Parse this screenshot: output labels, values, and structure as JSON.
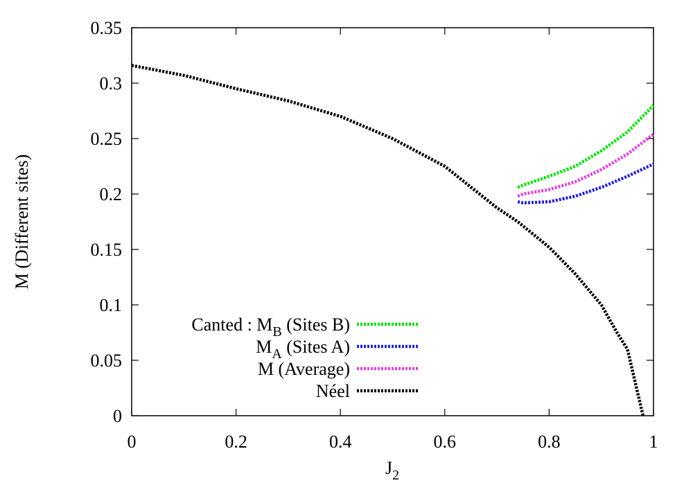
{
  "chart_data": {
    "type": "line",
    "xlabel": "J_2",
    "ylabel": "M (Different sites)",
    "xlim": [
      0,
      1
    ],
    "xticks": [
      0,
      0.2,
      0.4,
      0.6,
      0.8,
      1
    ],
    "ylim": [
      0,
      0.35
    ],
    "yticks": [
      0,
      0.05,
      0.1,
      0.15,
      0.2,
      0.25,
      0.3,
      0.35
    ],
    "legend": "lower left",
    "series": [
      {
        "name": "Canted : M_B (Sites B)",
        "color": "#00e000",
        "x": [
          0.74,
          0.75,
          0.8,
          0.85,
          0.9,
          0.95,
          1.0
        ],
        "values": [
          0.206,
          0.208,
          0.216,
          0.225,
          0.239,
          0.256,
          0.28
        ]
      },
      {
        "name": "M_A (Sites A)",
        "color": "#1f1fd6",
        "x": [
          0.74,
          0.75,
          0.8,
          0.85,
          0.9,
          0.95,
          1.0
        ],
        "values": [
          0.193,
          0.192,
          0.193,
          0.198,
          0.206,
          0.216,
          0.227
        ]
      },
      {
        "name": "M (Average)",
        "color": "#e040e0",
        "x": [
          0.74,
          0.75,
          0.8,
          0.85,
          0.9,
          0.95,
          1.0
        ],
        "values": [
          0.198,
          0.2,
          0.204,
          0.211,
          0.222,
          0.236,
          0.254
        ]
      },
      {
        "name": "Néel",
        "color": "#000000",
        "x": [
          0,
          0.1,
          0.2,
          0.3,
          0.4,
          0.5,
          0.6,
          0.7,
          0.74,
          0.8,
          0.85,
          0.9,
          0.93,
          0.95,
          0.98
        ],
        "values": [
          0.316,
          0.307,
          0.295,
          0.284,
          0.27,
          0.25,
          0.225,
          0.1875,
          0.175,
          0.152,
          0.128,
          0.1,
          0.075,
          0.06,
          0
        ]
      }
    ]
  }
}
